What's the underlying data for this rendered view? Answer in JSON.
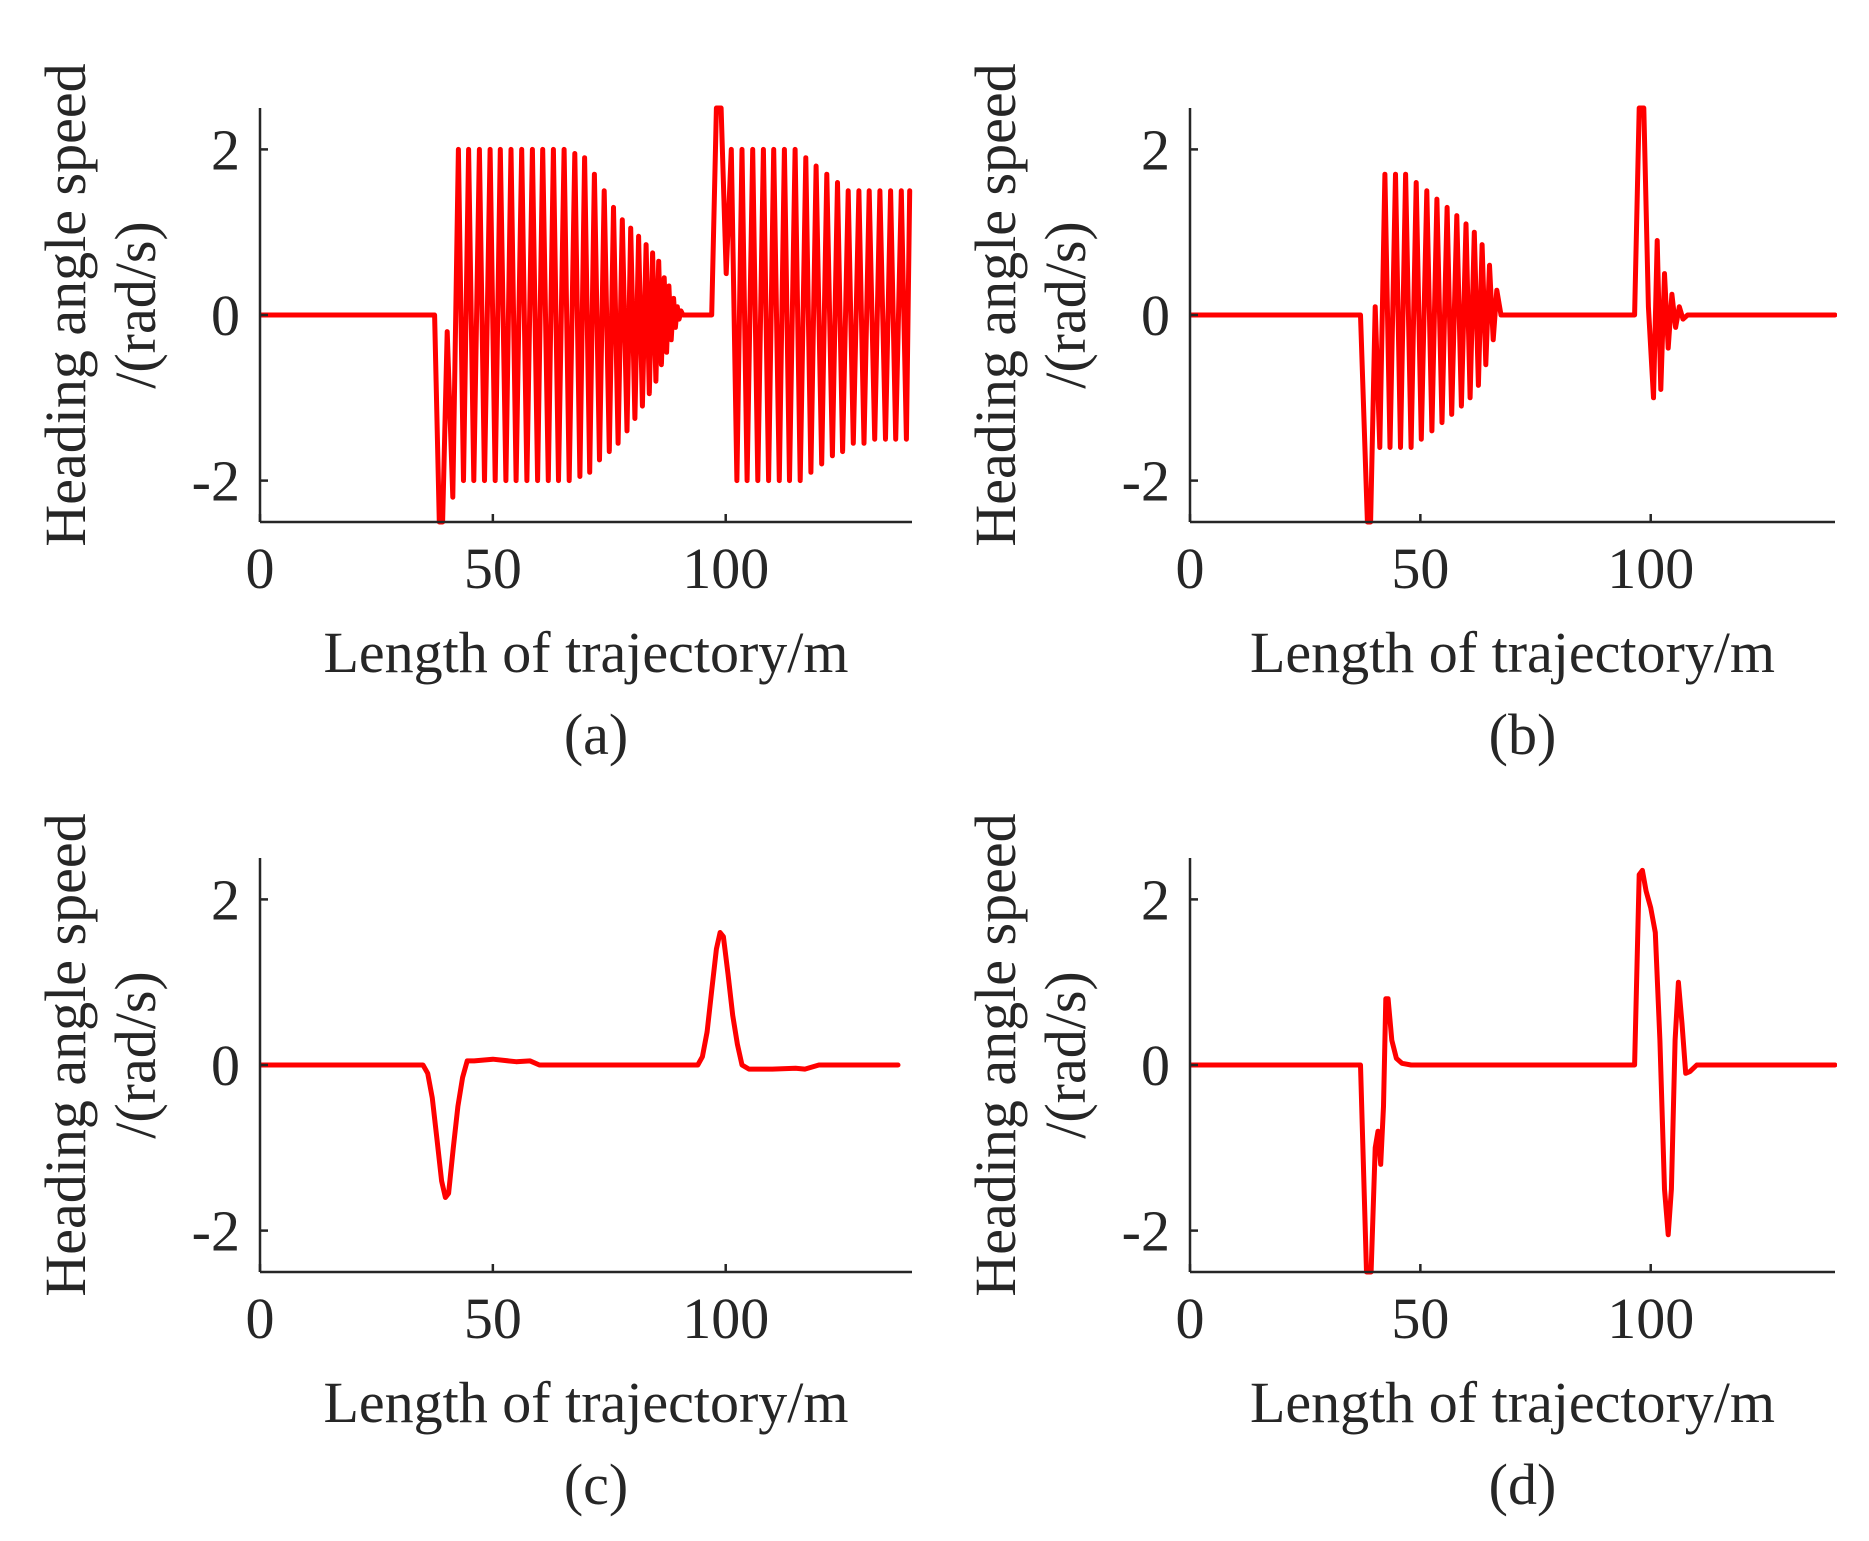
{
  "figure": {
    "panels": [
      "a",
      "b",
      "c",
      "d"
    ]
  },
  "colors": {
    "series": "#ff0000",
    "axis": "#262626"
  },
  "chart_data": [
    {
      "id": "a",
      "type": "line",
      "caption": "(a)",
      "xlabel": "Length of trajectory/m",
      "ylabel_line1": "Heading angle speed",
      "ylabel_line2": "/(rad/s)",
      "xlim": [
        0,
        140
      ],
      "ylim": [
        -2.5,
        2.5
      ],
      "xticks": [
        0,
        50,
        100
      ],
      "xtick_labels": [
        "0",
        "50",
        "100"
      ],
      "yticks": [
        -2,
        0,
        2
      ],
      "ytick_labels": [
        "-2",
        "0",
        "2"
      ],
      "grid": false,
      "series": [
        {
          "x": [
            0,
            37.5,
            38.5,
            39.2,
            40.2,
            41.4,
            42.6,
            43.7,
            44.8,
            45.9,
            47.1,
            48.2,
            49.4,
            50.5,
            51.6,
            52.8,
            53.9,
            55.0,
            56.2,
            57.3,
            58.5,
            59.6,
            60.7,
            61.9,
            63.0,
            64.1,
            65.3,
            66.4,
            67.6,
            68.7,
            69.7,
            70.8,
            71.8,
            72.9,
            73.9,
            75.0,
            75.9,
            76.9,
            77.8,
            78.8,
            79.6,
            80.5,
            81.3,
            82.1,
            82.9,
            83.6,
            84.3,
            85.0,
            85.6,
            86.2,
            86.8,
            87.3,
            87.8,
            88.3,
            88.8,
            89.2,
            89.6,
            90.0,
            90.4,
            90.8,
            91.2,
            91.6,
            92.0,
            92.4,
            93.0,
            97.0,
            98.0,
            99.0,
            100.1,
            101.2,
            102.4,
            103.5,
            104.6,
            105.8,
            106.9,
            108.1,
            109.2,
            110.3,
            111.5,
            112.6,
            113.7,
            114.9,
            116.0,
            117.2,
            118.3,
            119.4,
            120.6,
            121.7,
            122.9,
            124.0,
            125.1,
            126.3,
            127.4,
            128.6,
            129.7,
            130.8,
            132.0,
            133.1,
            134.3,
            135.4,
            136.5,
            137.7,
            138.8,
            139.5
          ],
          "y": [
            0,
            0,
            -2.5,
            -2.5,
            -0.2,
            -2.2,
            2.0,
            -2.0,
            2.0,
            -2.0,
            2.0,
            -2.0,
            2.0,
            -2.0,
            2.0,
            -2.0,
            2.0,
            -2.0,
            2.0,
            -2.0,
            2.0,
            -2.0,
            2.0,
            -2.0,
            2.0,
            -2.0,
            2.0,
            -2.0,
            1.95,
            -1.95,
            1.9,
            -1.9,
            1.7,
            -1.75,
            1.5,
            -1.65,
            1.3,
            -1.55,
            1.15,
            -1.4,
            1.05,
            -1.25,
            0.95,
            -1.1,
            0.85,
            -0.95,
            0.75,
            -0.8,
            0.65,
            -0.6,
            0.45,
            -0.45,
            0.35,
            -0.3,
            0.2,
            -0.15,
            0.1,
            -0.05,
            0.05,
            0,
            0,
            0,
            0,
            0,
            0,
            0,
            2.5,
            2.5,
            0.5,
            2.0,
            -2.0,
            2.0,
            -2.0,
            2.0,
            -2.0,
            2.0,
            -2.0,
            2.0,
            -2.0,
            2.0,
            -2.0,
            2.0,
            -2.0,
            1.9,
            -1.9,
            1.8,
            -1.8,
            1.7,
            -1.7,
            1.6,
            -1.65,
            1.5,
            -1.55,
            1.5,
            -1.55,
            1.5,
            -1.5,
            1.5,
            -1.5,
            1.5,
            -1.5,
            1.5,
            -1.5,
            1.5
          ]
        }
      ]
    },
    {
      "id": "b",
      "type": "line",
      "caption": "(b)",
      "xlabel": "Length of trajectory/m",
      "ylabel_line1": "Heading angle speed",
      "ylabel_line2": "/(rad/s)",
      "xlim": [
        0,
        140
      ],
      "ylim": [
        -2.5,
        2.5
      ],
      "xticks": [
        0,
        50,
        100
      ],
      "xtick_labels": [
        "0",
        "50",
        "100"
      ],
      "yticks": [
        -2,
        0,
        2
      ],
      "ytick_labels": [
        "-2",
        "0",
        "2"
      ],
      "grid": false,
      "series": [
        {
          "x": [
            0,
            37.0,
            38.5,
            39.2,
            40.2,
            41.2,
            42.3,
            43.4,
            44.6,
            45.7,
            46.8,
            48.0,
            49.1,
            50.2,
            51.4,
            52.5,
            53.6,
            54.7,
            55.8,
            56.8,
            57.9,
            58.9,
            59.9,
            60.8,
            61.7,
            62.6,
            63.4,
            64.2,
            65.0,
            65.8,
            66.6,
            67.5,
            96.5,
            97.5,
            98.5,
            99.5,
            100.6,
            101.4,
            102.2,
            103.0,
            103.8,
            104.6,
            105.4,
            106.2,
            107.0,
            108.0,
            140
          ],
          "y": [
            0,
            0,
            -2.5,
            -2.5,
            0.1,
            -1.6,
            1.7,
            -1.6,
            1.7,
            -1.6,
            1.7,
            -1.6,
            1.6,
            -1.5,
            1.5,
            -1.4,
            1.4,
            -1.3,
            1.3,
            -1.2,
            1.2,
            -1.1,
            1.1,
            -1.0,
            1.0,
            -0.85,
            0.85,
            -0.6,
            0.6,
            -0.3,
            0.3,
            0,
            0,
            2.5,
            2.5,
            0.1,
            -1.0,
            0.9,
            -0.9,
            0.5,
            -0.4,
            0.25,
            -0.15,
            0.1,
            -0.05,
            0,
            0
          ]
        }
      ]
    },
    {
      "id": "c",
      "type": "line",
      "caption": "(c)",
      "xlabel": "Length of trajectory/m",
      "ylabel_line1": "Heading angle speed",
      "ylabel_line2": "/(rad/s)",
      "xlim": [
        0,
        140
      ],
      "ylim": [
        -2.5,
        2.5
      ],
      "xticks": [
        0,
        50,
        100
      ],
      "xtick_labels": [
        "0",
        "50",
        "100"
      ],
      "yticks": [
        -2,
        0,
        2
      ],
      "ytick_labels": [
        "-2",
        "0",
        "2"
      ],
      "grid": false,
      "series": [
        {
          "x": [
            0,
            35.0,
            36.0,
            37.0,
            38.0,
            39.0,
            39.8,
            40.5,
            41.5,
            42.5,
            43.5,
            44.5,
            46.0,
            50.0,
            55.0,
            58.0,
            60.0,
            94.0,
            95.0,
            96.0,
            97.0,
            98.0,
            98.8,
            99.5,
            100.5,
            101.5,
            102.5,
            103.5,
            105.0,
            110.0,
            115.0,
            117.0,
            120.0,
            137.0
          ],
          "y": [
            0,
            0,
            -0.1,
            -0.4,
            -0.9,
            -1.4,
            -1.6,
            -1.55,
            -1.0,
            -0.5,
            -0.15,
            0.05,
            0.05,
            0.07,
            0.04,
            0.05,
            0,
            0,
            0.1,
            0.4,
            0.9,
            1.4,
            1.6,
            1.55,
            1.1,
            0.6,
            0.25,
            0.0,
            -0.05,
            -0.05,
            -0.04,
            -0.05,
            0,
            0
          ]
        }
      ]
    },
    {
      "id": "d",
      "type": "line",
      "caption": "(d)",
      "xlabel": "Length of trajectory/m",
      "ylabel_line1": "Heading angle speed",
      "ylabel_line2": "/(rad/s)",
      "xlim": [
        0,
        140
      ],
      "ylim": [
        -2.5,
        2.5
      ],
      "xticks": [
        0,
        50,
        100
      ],
      "xtick_labels": [
        "0",
        "50",
        "100"
      ],
      "yticks": [
        -2,
        0,
        2
      ],
      "ytick_labels": [
        "-2",
        "0",
        "2"
      ],
      "grid": false,
      "series": [
        {
          "x": [
            0,
            37.0,
            38.3,
            39.3,
            40.2,
            40.8,
            41.4,
            42.0,
            42.5,
            43.0,
            43.8,
            44.8,
            46.0,
            48.0,
            96.5,
            97.5,
            98.2,
            99.0,
            100.0,
            101.0,
            102.0,
            103.0,
            103.8,
            104.5,
            105.3,
            106.0,
            106.8,
            107.6,
            108.5,
            110.0,
            140
          ],
          "y": [
            0,
            0,
            -2.5,
            -2.5,
            -1.0,
            -0.8,
            -1.2,
            -0.5,
            0.8,
            0.8,
            0.3,
            0.08,
            0.02,
            0,
            0,
            2.3,
            2.35,
            2.1,
            1.9,
            1.6,
            0.3,
            -1.5,
            -2.05,
            -1.5,
            0.3,
            1.0,
            0.5,
            -0.1,
            -0.08,
            0,
            0
          ]
        }
      ]
    }
  ]
}
